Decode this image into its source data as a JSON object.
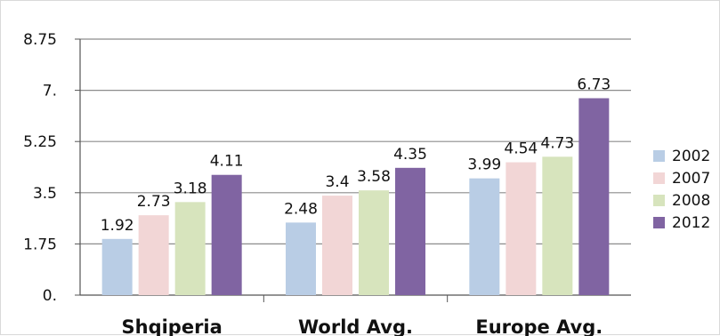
{
  "chart_data": {
    "type": "bar",
    "categories": [
      "Shqiperia",
      "World Avg.",
      "Europe Avg."
    ],
    "series": [
      {
        "name": "2002",
        "color": "#b9cde5",
        "values": [
          1.92,
          2.48,
          3.99
        ],
        "labels": [
          "1.92",
          "2.48",
          "3.99"
        ]
      },
      {
        "name": "2007",
        "color": "#f2d6d6",
        "values": [
          2.73,
          3.4,
          4.54
        ],
        "labels": [
          "2.73",
          "3.4",
          "4.54"
        ]
      },
      {
        "name": "2008",
        "color": "#d7e4bd",
        "values": [
          3.18,
          3.58,
          4.73
        ],
        "labels": [
          "3.18",
          "3.58",
          "4.73"
        ]
      },
      {
        "name": "2012",
        "color": "#8064a2",
        "values": [
          4.11,
          4.35,
          6.73
        ],
        "labels": [
          "4.11",
          "4.35",
          "6.73"
        ]
      }
    ],
    "yticks": [
      0,
      1.75,
      3.5,
      5.25,
      7,
      8.75
    ],
    "ytick_labels": [
      "0.",
      "1.75",
      "3.5",
      "5.25",
      "7.",
      "8.75"
    ],
    "ylim": [
      0,
      8.75
    ],
    "grid": true,
    "legend": "right"
  }
}
